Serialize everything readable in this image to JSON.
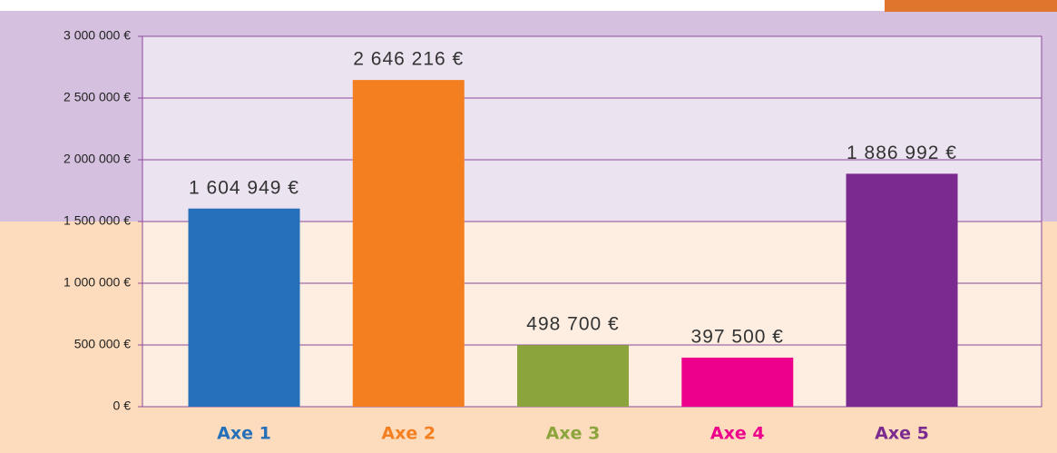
{
  "chart_data": {
    "type": "bar",
    "categories": [
      "Axe 1",
      "Axe 2",
      "Axe 3",
      "Axe 4",
      "Axe 5"
    ],
    "values": [
      1604949,
      2646216,
      498700,
      397500,
      1886992
    ],
    "value_labels": [
      "1 604 949 €",
      "2 646 216 €",
      "498 700 €",
      "397 500 €",
      "1 886 992 €"
    ],
    "colors": [
      "#2570b9",
      "#f47f20",
      "#8ca43c",
      "#ec008c",
      "#7b2a90"
    ],
    "ylim": [
      0,
      3000000
    ],
    "yticks": [
      {
        "value": 0,
        "label": "0 €"
      },
      {
        "value": 500000,
        "label": "500 000 €"
      },
      {
        "value": 1000000,
        "label": "1 000 000 €"
      },
      {
        "value": 1500000,
        "label": "1 500 000 €"
      },
      {
        "value": 2000000,
        "label": "2 000 000 €"
      },
      {
        "value": 2500000,
        "label": "2 500 000 €"
      },
      {
        "value": 3000000,
        "label": "3 000 000 €"
      }
    ],
    "grid": true
  }
}
